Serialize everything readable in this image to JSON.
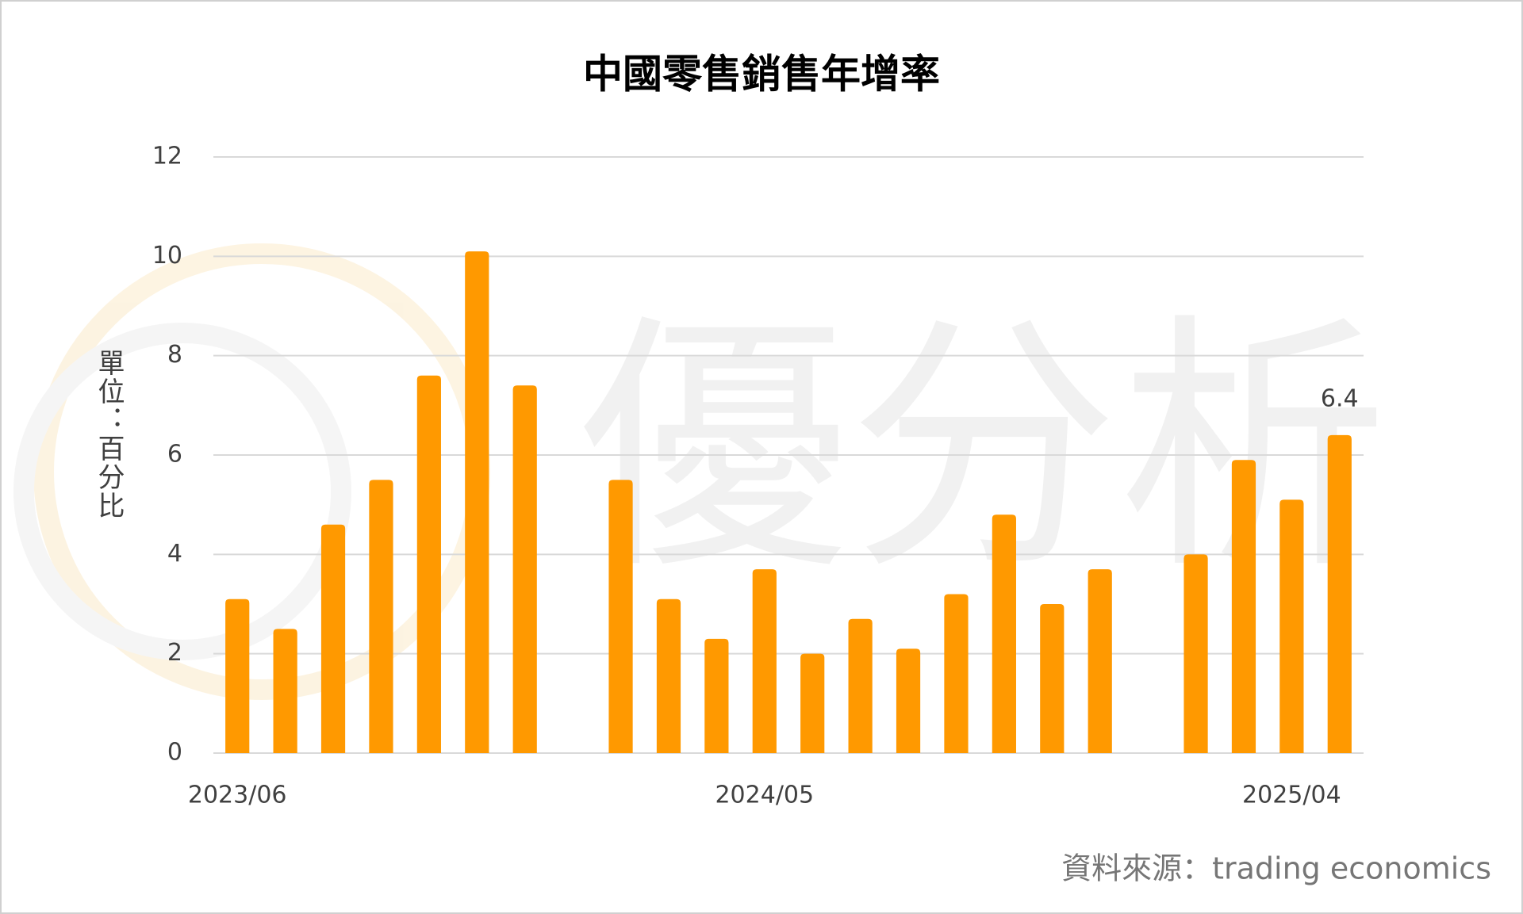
{
  "chart_data": {
    "type": "bar",
    "title": "中國零售銷售年增率",
    "y_label": "單位：百分比",
    "source": "資料來源：trading economics",
    "watermark": "優分析",
    "categories": [
      "2023/06",
      null,
      null,
      null,
      null,
      null,
      null,
      null,
      null,
      null,
      null,
      "2024/05",
      null,
      null,
      null,
      null,
      null,
      null,
      null,
      null,
      null,
      null,
      "2025/04",
      null
    ],
    "values": [
      3.1,
      2.5,
      4.6,
      5.5,
      7.6,
      10.1,
      7.4,
      null,
      5.5,
      3.1,
      2.3,
      3.7,
      2.0,
      2.7,
      2.1,
      3.2,
      4.8,
      3.0,
      3.7,
      null,
      4.0,
      5.9,
      5.1,
      6.4
    ],
    "value_labels": [
      null,
      null,
      null,
      null,
      null,
      null,
      null,
      null,
      null,
      null,
      null,
      null,
      null,
      null,
      null,
      null,
      null,
      null,
      null,
      null,
      null,
      null,
      null,
      "6.4"
    ],
    "color": "#ff9900",
    "ylim": [
      0,
      12
    ],
    "yticks": [
      0,
      2,
      4,
      6,
      8,
      10,
      12
    ],
    "grid": true
  }
}
